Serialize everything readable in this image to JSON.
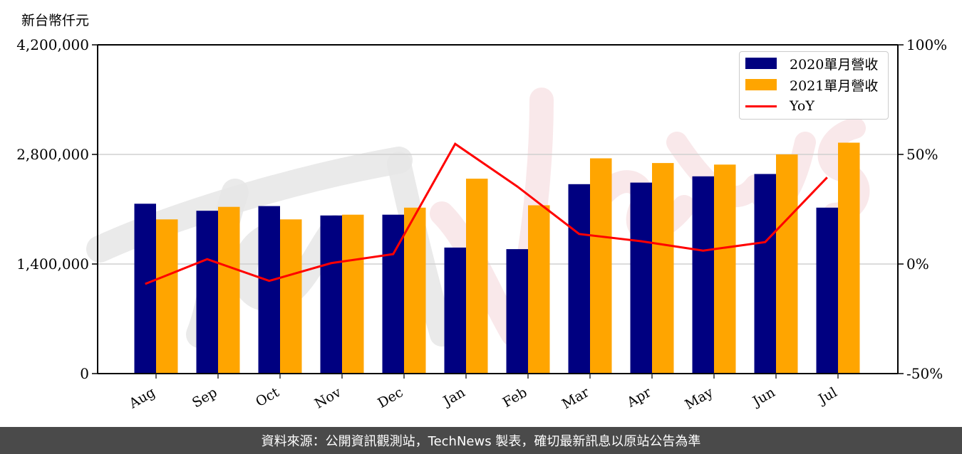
{
  "chart": {
    "unit_label": "新台幣仟元",
    "colors": {
      "series_2020": "#000080",
      "series_2021": "#FFA500",
      "yoy": "#FF0000",
      "grid": "#d0d0d0",
      "watermark_gray": "#e6e6e6",
      "watermark_pink": "#f8e4e6"
    },
    "legend": {
      "items": [
        {
          "label": "2020單月營收",
          "type": "bar",
          "color": "#000080"
        },
        {
          "label": "2021單月營收",
          "type": "bar",
          "color": "#FFA500"
        },
        {
          "label": "YoY",
          "type": "line",
          "color": "#FF0000"
        }
      ]
    },
    "left_axis_ticks": [
      "0",
      "1,400,000",
      "2,800,000",
      "4,200,000"
    ],
    "right_axis_ticks": [
      "-50%",
      "0%",
      "50%",
      "100%"
    ],
    "watermark": "TechNews"
  },
  "footer": {
    "text": "資料來源：公開資訊觀測站，TechNews 製表，確切最新訊息以原站公告為準"
  },
  "chart_data": {
    "type": "bar",
    "title": "",
    "xlabel": "",
    "ylabel": "新台幣仟元",
    "y2label": "YoY",
    "categories": [
      "Aug",
      "Sep",
      "Oct",
      "Nov",
      "Dec",
      "Jan",
      "Feb",
      "Mar",
      "Apr",
      "May",
      "Jun",
      "Jul"
    ],
    "series": [
      {
        "name": "2020單月營收",
        "type": "bar",
        "axis": "left",
        "color": "#000080",
        "values": [
          2170000,
          2080000,
          2140000,
          2020000,
          2030000,
          1610000,
          1590000,
          2420000,
          2440000,
          2520000,
          2550000,
          2120000
        ]
      },
      {
        "name": "2021單月營收",
        "type": "bar",
        "axis": "left",
        "color": "#FFA500",
        "values": [
          1970000,
          2130000,
          1970000,
          2030000,
          2120000,
          2490000,
          2150000,
          2750000,
          2690000,
          2670000,
          2800000,
          2950000
        ]
      },
      {
        "name": "YoY",
        "type": "line",
        "axis": "right",
        "unit": "%",
        "color": "#FF0000",
        "values": [
          -9.1,
          2.2,
          -7.7,
          0.4,
          4.5,
          54.8,
          35.4,
          13.7,
          10.4,
          6.1,
          10.0,
          39.5
        ]
      }
    ],
    "ylim": [
      0,
      4200000
    ],
    "yticks": [
      0,
      1400000,
      2800000,
      4200000
    ],
    "y2lim": [
      -50,
      100
    ],
    "y2ticks": [
      -50,
      0,
      50,
      100
    ],
    "grid": "horizontal",
    "legend_position": "upper right"
  }
}
